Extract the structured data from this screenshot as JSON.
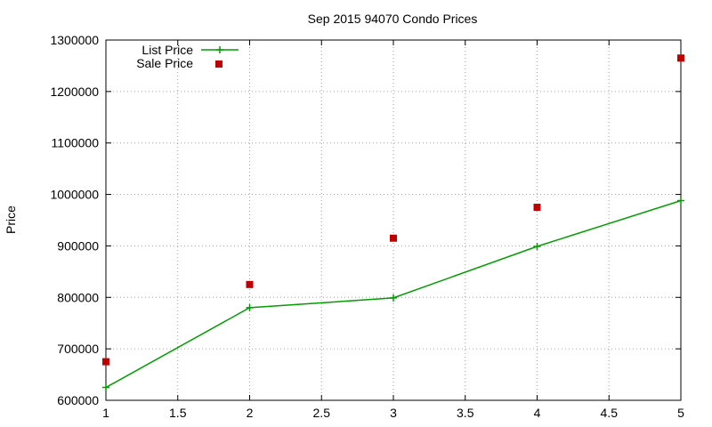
{
  "chart_data": {
    "type": "line",
    "title": "Sep 2015 94070 Condo Prices",
    "xlabel": "",
    "ylabel": "Price",
    "xlim": [
      1,
      5
    ],
    "ylim": [
      600000,
      1300000
    ],
    "x_ticks": [
      1,
      1.5,
      2,
      2.5,
      3,
      3.5,
      4,
      4.5,
      5
    ],
    "x_tick_labels": [
      "1",
      "1.5",
      "2",
      "2.5",
      "3",
      "3.5",
      "4",
      "4.5",
      "5"
    ],
    "y_ticks": [
      600000,
      700000,
      800000,
      900000,
      1000000,
      1100000,
      1200000,
      1300000
    ],
    "y_tick_labels": [
      "600000",
      "700000",
      "800000",
      "900000",
      "1000000",
      "1100000",
      "1200000",
      "1300000"
    ],
    "grid": true,
    "legend_position": "top-left",
    "series": [
      {
        "name": "List Price",
        "style": "line-with-plus-markers",
        "color": "#009e00",
        "x": [
          1,
          2,
          3,
          4,
          5
        ],
        "y": [
          625000,
          780000,
          799000,
          899000,
          988000
        ]
      },
      {
        "name": "Sale Price",
        "style": "square-markers",
        "color": "#c00000",
        "x": [
          1,
          2,
          3,
          4,
          5
        ],
        "y": [
          675000,
          825000,
          915000,
          975000,
          1265000
        ]
      }
    ]
  }
}
